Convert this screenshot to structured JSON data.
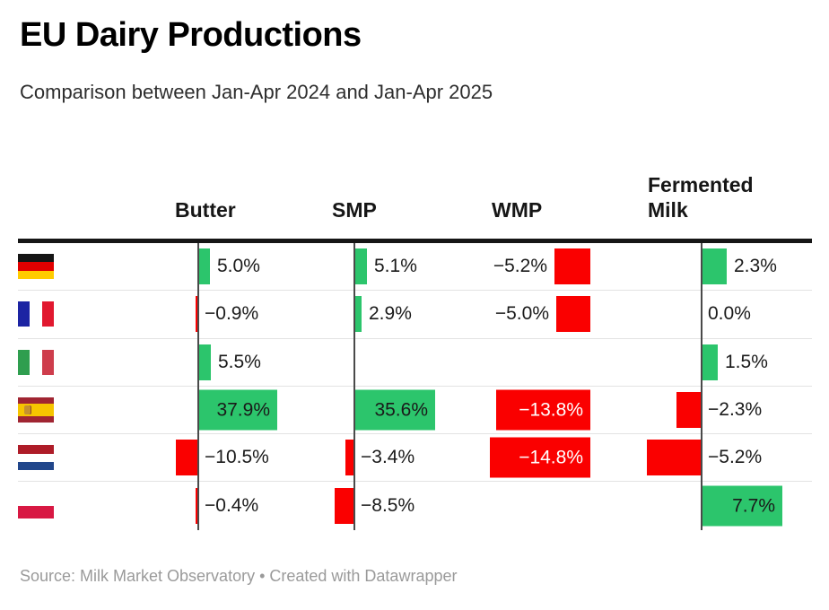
{
  "title": "EU Dairy Productions",
  "subtitle": "Comparison between Jan-Apr 2024 and Jan-Apr 2025",
  "footer": "Source: Milk Market Observatory • Created with Datawrapper",
  "colors": {
    "positive": "#2cc56c",
    "negative": "#fa0000",
    "axis_line": "#4a4a4a",
    "header_rule": "#161616",
    "row_separator": "#e3e3e3",
    "inside_label_dark": "#1a1a1a",
    "inside_label_light": "#ffffff"
  },
  "table": {
    "columns": [
      {
        "id": "butter",
        "label": "Butter"
      },
      {
        "id": "smp",
        "label": "SMP"
      },
      {
        "id": "wmp",
        "label": "WMP"
      },
      {
        "id": "fm",
        "label": "Fermented Milk"
      }
    ],
    "rows": [
      {
        "country": "Germany",
        "flag": "de",
        "cells": {
          "butter": {
            "value": 5.0,
            "label": "5.0%",
            "pos": "right"
          },
          "smp": {
            "value": 5.1,
            "label": "5.1%",
            "pos": "right"
          },
          "wmp": {
            "value": -5.2,
            "label": "−5.2%",
            "pos": "left"
          },
          "fm": {
            "value": 2.3,
            "label": "2.3%",
            "pos": "right"
          }
        }
      },
      {
        "country": "France",
        "flag": "fr",
        "cells": {
          "butter": {
            "value": -0.9,
            "label": "−0.9%",
            "pos": "right"
          },
          "smp": {
            "value": 2.9,
            "label": "2.9%",
            "pos": "right"
          },
          "wmp": {
            "value": -5.0,
            "label": "−5.0%",
            "pos": "left"
          },
          "fm": {
            "value": 0.0,
            "label": "0.0%",
            "pos": "right"
          }
        }
      },
      {
        "country": "Italy",
        "flag": "it",
        "cells": {
          "butter": {
            "value": 5.5,
            "label": "5.5%",
            "pos": "right"
          },
          "fm": {
            "value": 1.5,
            "label": "1.5%",
            "pos": "right"
          }
        }
      },
      {
        "country": "Spain",
        "flag": "es",
        "cells": {
          "butter": {
            "value": 37.9,
            "label": "37.9%",
            "pos": "inside"
          },
          "smp": {
            "value": 35.6,
            "label": "35.6%",
            "pos": "inside"
          },
          "wmp": {
            "value": -13.8,
            "label": "−13.8%",
            "pos": "inside"
          },
          "fm": {
            "value": -2.3,
            "label": "−2.3%",
            "pos": "right"
          }
        }
      },
      {
        "country": "Netherlands",
        "flag": "nl",
        "cells": {
          "butter": {
            "value": -10.5,
            "label": "−10.5%",
            "pos": "right"
          },
          "smp": {
            "value": -3.4,
            "label": "−3.4%",
            "pos": "right"
          },
          "wmp": {
            "value": -14.8,
            "label": "−14.8%",
            "pos": "inside"
          },
          "fm": {
            "value": -5.2,
            "label": "−5.2%",
            "pos": "right"
          }
        }
      },
      {
        "country": "Poland",
        "flag": "pl",
        "cells": {
          "butter": {
            "value": -0.4,
            "label": "−0.4%",
            "pos": "right"
          },
          "smp": {
            "value": -8.5,
            "label": "−8.5%",
            "pos": "right"
          },
          "fm": {
            "value": 7.7,
            "label": "7.7%",
            "pos": "inside"
          }
        }
      }
    ]
  },
  "flags": {
    "de": {
      "orient": "h",
      "stripes": [
        [
          "#151515",
          1
        ],
        [
          "#e10000",
          1
        ],
        [
          "#ffcc00",
          1
        ]
      ],
      "emblem": false
    },
    "fr": {
      "orient": "v",
      "stripes": [
        [
          "#1c24a3",
          1
        ],
        [
          "#ffffff",
          1
        ],
        [
          "#e1182f",
          1
        ]
      ],
      "emblem": false
    },
    "it": {
      "orient": "v",
      "stripes": [
        [
          "#2f9e4f",
          1
        ],
        [
          "#ffffff",
          1
        ],
        [
          "#ce3d4c",
          1
        ]
      ],
      "emblem": false
    },
    "es": {
      "orient": "h",
      "stripes": [
        [
          "#a02532",
          1
        ],
        [
          "#f6c500",
          2
        ],
        [
          "#a02532",
          1
        ]
      ],
      "emblem": true
    },
    "nl": {
      "orient": "h",
      "stripes": [
        [
          "#ae1c28",
          1
        ],
        [
          "#ffffff",
          1
        ],
        [
          "#21468b",
          1
        ]
      ],
      "emblem": false
    },
    "pl": {
      "orient": "h",
      "stripes": [
        [
          "#ffffff",
          1
        ],
        [
          "#d81843",
          1
        ]
      ],
      "emblem": false
    }
  },
  "chart_data": {
    "type": "table",
    "title": "EU Dairy Productions",
    "subtitle": "Comparison between Jan-Apr 2024 and Jan-Apr 2025",
    "unit": "%",
    "columns": [
      "Butter",
      "SMP",
      "WMP",
      "Fermented Milk"
    ],
    "rows": [
      {
        "country": "Germany",
        "values": [
          5.0,
          5.1,
          -5.2,
          2.3
        ]
      },
      {
        "country": "France",
        "values": [
          -0.9,
          2.9,
          -5.0,
          0.0
        ]
      },
      {
        "country": "Italy",
        "values": [
          5.5,
          null,
          null,
          1.5
        ]
      },
      {
        "country": "Spain",
        "values": [
          37.9,
          35.6,
          -13.8,
          -2.3
        ]
      },
      {
        "country": "Netherlands",
        "values": [
          -10.5,
          -3.4,
          -14.8,
          -5.2
        ]
      },
      {
        "country": "Poland",
        "values": [
          -0.4,
          -8.5,
          null,
          7.7
        ]
      }
    ],
    "positive_color": "#2cc56c",
    "negative_color": "#fa0000",
    "legend_position": "none",
    "grid": "row-separators-only",
    "source": "Milk Market Observatory"
  }
}
